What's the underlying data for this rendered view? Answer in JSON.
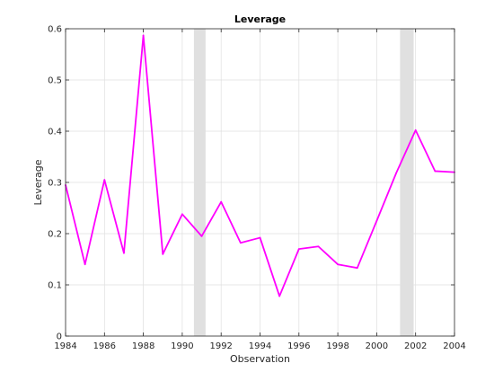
{
  "chart_data": {
    "type": "line",
    "title": "Leverage",
    "xlabel": "Observation",
    "ylabel": "Leverage",
    "xlim": [
      1984,
      2004
    ],
    "ylim": [
      0,
      0.6
    ],
    "grid": true,
    "legend": "none",
    "x_ticks": [
      1984,
      1986,
      1988,
      1990,
      1992,
      1994,
      1996,
      1998,
      2000,
      2002,
      2004
    ],
    "x_tick_labels": [
      "1984",
      "1986",
      "1988",
      "1990",
      "1992",
      "1994",
      "1996",
      "1998",
      "2000",
      "2002",
      "2004"
    ],
    "y_ticks": [
      0,
      0.1,
      0.2,
      0.3,
      0.4,
      0.5,
      0.6
    ],
    "y_tick_labels": [
      "0",
      "0.1",
      "0.2",
      "0.3",
      "0.4",
      "0.5",
      "0.6"
    ],
    "recession_bands": [
      {
        "start": 1990.6,
        "end": 1991.2
      },
      {
        "start": 2001.2,
        "end": 2001.9
      }
    ],
    "series": [
      {
        "color": "#ff00ff",
        "x": [
          1984,
          1985,
          1986,
          1987,
          1988,
          1989,
          1990,
          1991,
          1992,
          1993,
          1994,
          1995,
          1996,
          1997,
          1998,
          1999,
          2000,
          2001,
          2002,
          2003,
          2004
        ],
        "values": [
          0.295,
          0.14,
          0.305,
          0.162,
          0.587,
          0.16,
          0.238,
          0.195,
          0.262,
          0.182,
          0.192,
          0.078,
          0.17,
          0.175,
          0.14,
          0.133,
          0.225,
          0.318,
          0.402,
          0.322,
          0.32
        ]
      }
    ],
    "colors": {
      "band": "#e0e0e0",
      "grid": "#dfdfdf",
      "axis": "#262626"
    }
  }
}
